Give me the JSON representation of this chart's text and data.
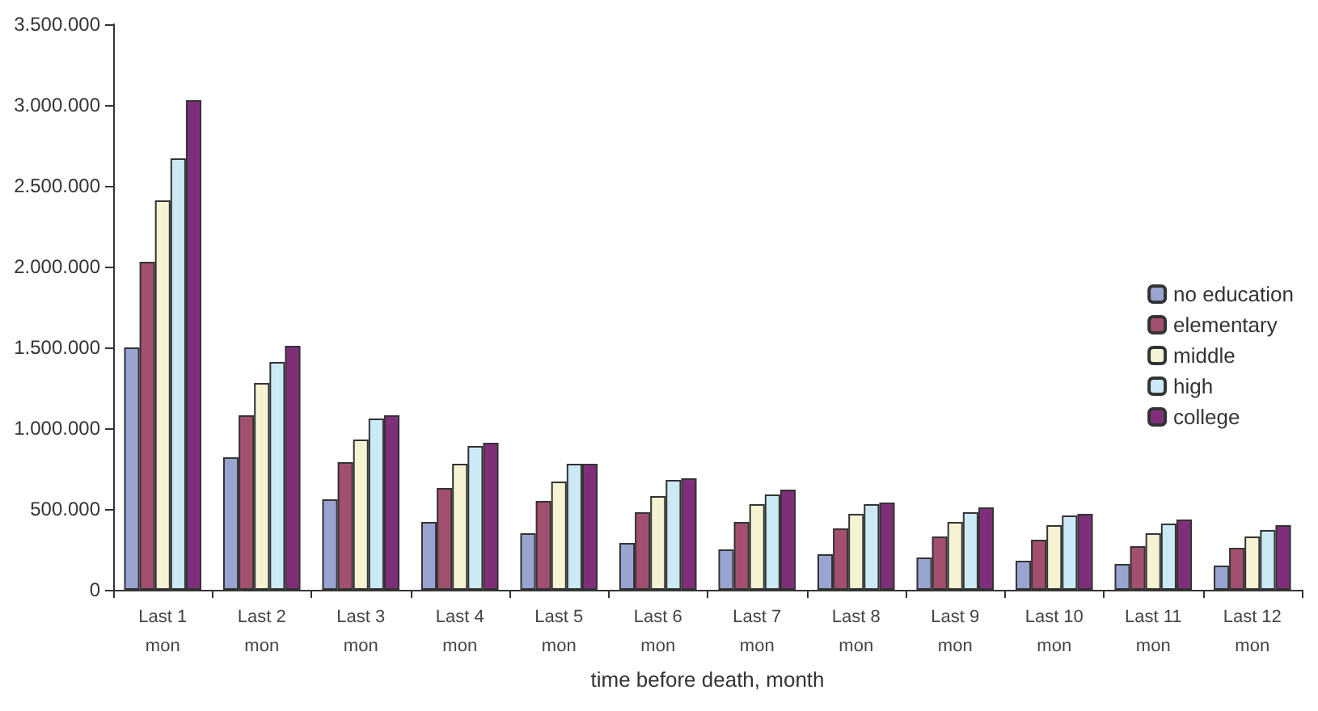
{
  "chart_data": {
    "type": "bar",
    "xlabel": "time before death, month",
    "categories": [
      "Last 1\nmon",
      "Last 2\nmon",
      "Last 3\nmon",
      "Last 4\nmon",
      "Last 5\nmon",
      "Last 6\nmon",
      "Last 7\nmon",
      "Last 8\nmon",
      "Last 9\nmon",
      "Last 10\nmon",
      "Last 11\nmon",
      "Last 12\nmon"
    ],
    "series": [
      {
        "name": "no education",
        "color": "#9aa4d0",
        "values": [
          1500000,
          820000,
          560000,
          420000,
          350000,
          290000,
          250000,
          220000,
          200000,
          180000,
          160000,
          150000
        ]
      },
      {
        "name": "elementary",
        "color": "#a35070",
        "values": [
          2030000,
          1080000,
          790000,
          630000,
          550000,
          480000,
          420000,
          380000,
          330000,
          310000,
          270000,
          260000
        ]
      },
      {
        "name": "middle",
        "color": "#f5f3d3",
        "values": [
          2410000,
          1280000,
          930000,
          780000,
          670000,
          580000,
          530000,
          470000,
          420000,
          400000,
          350000,
          330000
        ]
      },
      {
        "name": "high",
        "color": "#cceaf5",
        "values": [
          2670000,
          1410000,
          1060000,
          890000,
          780000,
          680000,
          590000,
          530000,
          480000,
          460000,
          410000,
          370000
        ]
      },
      {
        "name": "college",
        "color": "#7f2f7a",
        "values": [
          3030000,
          1510000,
          1080000,
          910000,
          780000,
          690000,
          620000,
          540000,
          510000,
          470000,
          435000,
          400000
        ]
      }
    ],
    "ylim": [
      0,
      3500000
    ],
    "yticks": [
      0,
      {
        "value": 500000,
        "label": "500.000"
      },
      {
        "value": 1000000,
        "label": "1.000.000"
      },
      {
        "value": 1500000,
        "label": "1.500.000"
      },
      {
        "value": 2000000,
        "label": "2.000.000"
      },
      {
        "value": 2500000,
        "label": "2.500.000"
      },
      {
        "value": 3000000,
        "label": "3.000.000"
      },
      {
        "value": 3500000,
        "label": "3.500.000"
      }
    ],
    "grid": false,
    "legend": "right"
  }
}
